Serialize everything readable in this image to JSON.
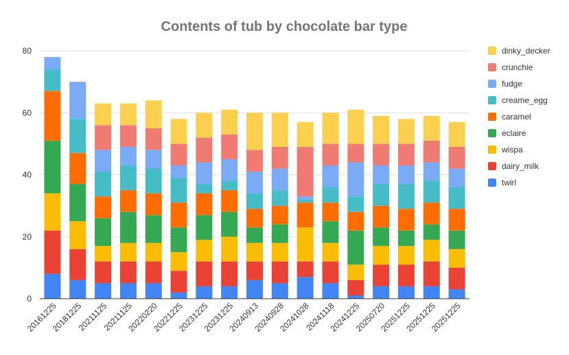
{
  "chart_data": {
    "type": "bar",
    "stacked": true,
    "title": "Contents of tub by chocolate bar type",
    "xlabel": "",
    "ylabel": "",
    "ylim": [
      0,
      80
    ],
    "yticks": [
      0,
      20,
      40,
      60,
      80
    ],
    "grid": true,
    "legend_position": "right",
    "categories": [
      "20161225",
      "20181225",
      "20211125",
      "20211125",
      "20220220",
      "20221225",
      "20231225",
      "20231225",
      "20240913",
      "20240928",
      "20241028",
      "20241118",
      "20241225",
      "20250720",
      "20251225",
      "20251225",
      "20251225"
    ],
    "series": [
      {
        "name": "twirl",
        "color": "#4285f4",
        "values": [
          8,
          6,
          5,
          5,
          5,
          2,
          4,
          4,
          6,
          5,
          7,
          5,
          1,
          4,
          4,
          4,
          3
        ]
      },
      {
        "name": "dairy_milk",
        "color": "#ea4335",
        "values": [
          14,
          10,
          7,
          7,
          7,
          7,
          8,
          8,
          6,
          7,
          5,
          7,
          5,
          7,
          7,
          8,
          7
        ]
      },
      {
        "name": "wispa",
        "color": "#fbbc04",
        "values": [
          12,
          9,
          5,
          6,
          6,
          6,
          7,
          8,
          6,
          6,
          11,
          6,
          5,
          6,
          6,
          7,
          6
        ]
      },
      {
        "name": "eclaire",
        "color": "#34a853",
        "values": [
          17,
          12,
          9,
          10,
          9,
          8,
          8,
          8,
          5,
          6,
          0,
          7,
          11,
          6,
          5,
          5,
          6
        ]
      },
      {
        "name": "caramel",
        "color": "#ff6d01",
        "values": [
          16,
          10,
          7,
          7,
          7,
          8,
          7,
          7,
          6,
          6,
          8,
          6,
          6,
          7,
          7,
          7,
          7
        ]
      },
      {
        "name": "creame_egg",
        "color": "#46bdc6",
        "values": [
          7,
          11,
          8,
          8,
          8,
          8,
          3,
          3,
          5,
          5,
          1,
          5,
          5,
          7,
          8,
          7,
          7
        ]
      },
      {
        "name": "fudge",
        "color": "#7baaf7",
        "values": [
          4,
          12,
          7,
          6,
          6,
          4,
          7,
          7,
          7,
          7,
          1,
          7,
          11,
          6,
          6,
          6,
          6
        ]
      },
      {
        "name": "crunchie",
        "color": "#f07b72",
        "values": [
          0,
          0,
          8,
          7,
          7,
          7,
          8,
          8,
          7,
          7,
          16,
          7,
          6,
          7,
          7,
          7,
          7
        ]
      },
      {
        "name": "dinky_decker",
        "color": "#fcd04f",
        "values": [
          0,
          0,
          7,
          7,
          9,
          8,
          8,
          8,
          12,
          11,
          8,
          10,
          11,
          9,
          8,
          8,
          8
        ]
      }
    ],
    "legend_order": [
      "dinky_decker",
      "crunchie",
      "fudge",
      "creame_egg",
      "caramel",
      "eclaire",
      "wispa",
      "dairy_milk",
      "twirl"
    ]
  }
}
